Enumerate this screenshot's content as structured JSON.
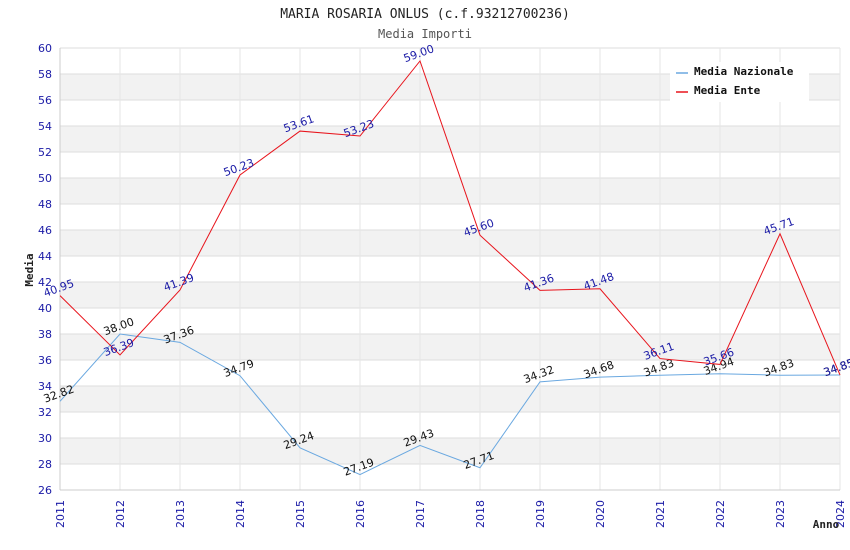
{
  "chart_data": {
    "type": "line",
    "title": "MARIA ROSARIA ONLUS (c.f.93212700236)",
    "subtitle": "Media Importi",
    "xlabel": "Anno",
    "ylabel": "Media",
    "ylim": [
      26,
      60
    ],
    "ytick_step": 2,
    "y_ticks": [
      "26",
      "28",
      "30",
      "32",
      "34",
      "36",
      "38",
      "40",
      "42",
      "44",
      "46",
      "48",
      "50",
      "52",
      "54",
      "56",
      "58",
      "60"
    ],
    "categories": [
      "2011",
      "2012",
      "2013",
      "2014",
      "2015",
      "2016",
      "2017",
      "2018",
      "2019",
      "2020",
      "2021",
      "2022",
      "2023",
      "2024"
    ],
    "legend_position": "top-right",
    "series": [
      {
        "name": "Media Nazionale",
        "color": "#6aa8e0",
        "label_color": "#111111",
        "values": [
          32.82,
          38.0,
          37.36,
          34.79,
          29.24,
          27.19,
          29.43,
          27.71,
          34.32,
          34.68,
          34.83,
          34.94,
          34.83,
          34.85
        ],
        "labels": [
          "32.82",
          "38.00",
          "37.36",
          "34.79",
          "29.24",
          "27.19",
          "29.43",
          "27.71",
          "34.32",
          "34.68",
          "34.83",
          "34.94",
          "34.83",
          "34.85"
        ]
      },
      {
        "name": "Media Ente",
        "color": "#e8141c",
        "label_color": "#1a1aa6",
        "values": [
          40.95,
          36.39,
          41.39,
          50.23,
          53.61,
          53.23,
          59.0,
          45.6,
          41.36,
          41.48,
          36.11,
          35.66,
          45.71,
          34.85
        ],
        "labels": [
          "40.95",
          "36.39",
          "41.39",
          "50.23",
          "53.61",
          "53.23",
          "59.00",
          "45.60",
          "41.36",
          "41.48",
          "36.11",
          "35.66",
          "45.71",
          "34.85"
        ]
      }
    ]
  }
}
